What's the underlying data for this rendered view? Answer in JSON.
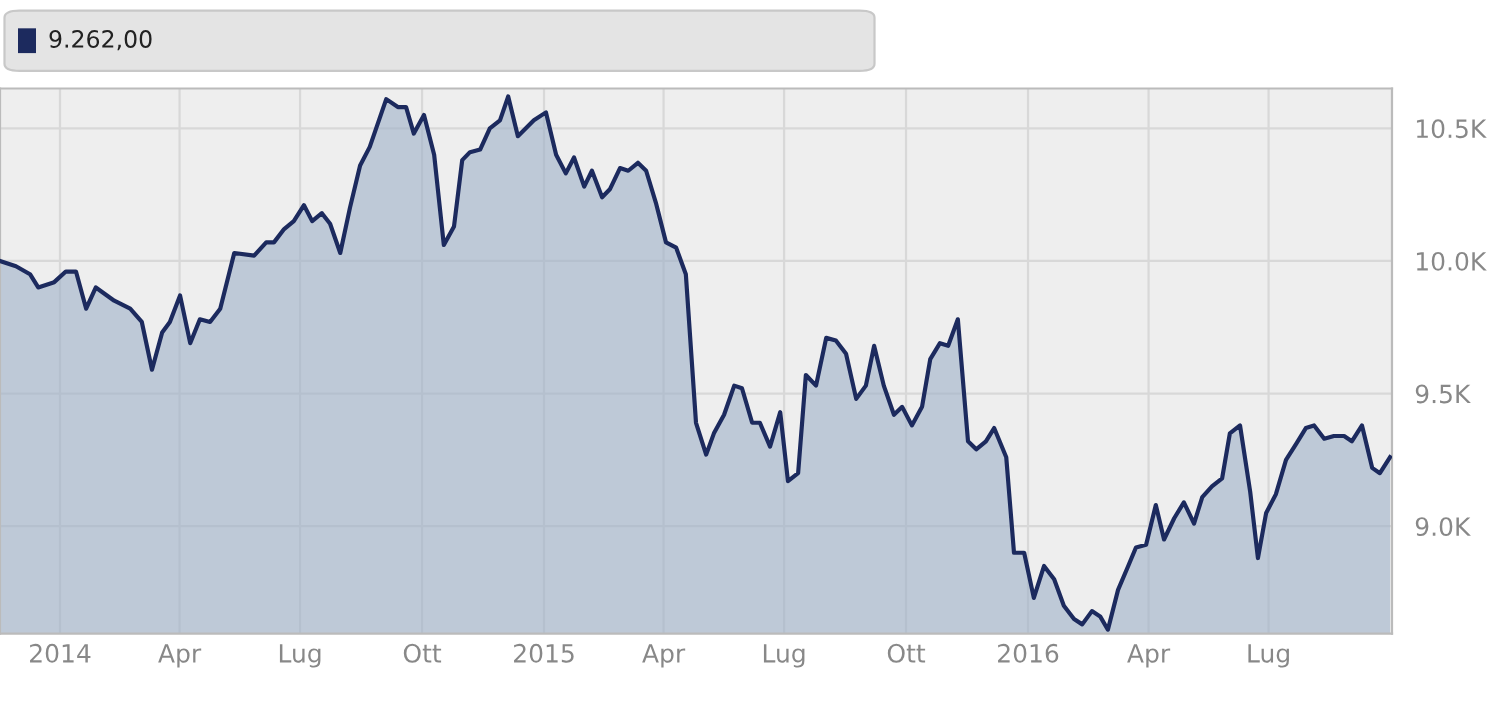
{
  "chart_data": {
    "type": "area",
    "annotations": [
      "9.262,00"
    ],
    "x": [
      2013.876,
      2013.909,
      2013.938,
      2013.955,
      2013.988,
      2014.012,
      2014.033,
      2014.054,
      2014.074,
      2014.112,
      2014.145,
      2014.169,
      2014.19,
      2014.211,
      2014.227,
      2014.248,
      2014.269,
      2014.289,
      2014.31,
      2014.331,
      2014.36,
      2014.401,
      2014.426,
      2014.442,
      2014.463,
      2014.483,
      2014.504,
      2014.521,
      2014.541,
      2014.558,
      2014.579,
      2014.599,
      2014.62,
      2014.64,
      2014.674,
      2014.698,
      2014.715,
      2014.731,
      2014.752,
      2014.773,
      2014.793,
      2014.814,
      2014.831,
      2014.847,
      2014.868,
      2014.888,
      2014.909,
      2014.926,
      2014.946,
      2014.979,
      2015.004,
      2015.025,
      2015.045,
      2015.062,
      2015.083,
      2015.099,
      2015.12,
      2015.136,
      2015.157,
      2015.174,
      2015.194,
      2015.211,
      2015.231,
      2015.252,
      2015.273,
      2015.293,
      2015.314,
      2015.335,
      2015.351,
      2015.372,
      2015.393,
      2015.409,
      2015.43,
      2015.446,
      2015.467,
      2015.488,
      2015.504,
      2015.525,
      2015.541,
      2015.562,
      2015.583,
      2015.603,
      2015.624,
      2015.645,
      2015.665,
      2015.682,
      2015.702,
      2015.723,
      2015.74,
      2015.76,
      2015.781,
      2015.798,
      2015.818,
      2015.835,
      2015.855,
      2015.876,
      2015.893,
      2015.913,
      2015.93,
      2015.955,
      2015.971,
      2015.992,
      2016.012,
      2016.033,
      2016.054,
      2016.074,
      2016.095,
      2016.112,
      2016.132,
      2016.149,
      2016.165,
      2016.186,
      2016.207,
      2016.223,
      2016.244,
      2016.264,
      2016.281,
      2016.302,
      2016.322,
      2016.343,
      2016.36,
      2016.38,
      2016.401,
      2016.417,
      2016.438,
      2016.459,
      2016.475,
      2016.492,
      2016.512,
      2016.533,
      2016.554,
      2016.574,
      2016.591,
      2016.612,
      2016.632,
      2016.653,
      2016.669,
      2016.69,
      2016.711,
      2016.727,
      2016.748
    ],
    "series": [
      {
        "color": "#1c2a5e",
        "values": [
          10000,
          9980,
          9950,
          9900,
          9920,
          9960,
          9960,
          9820,
          9900,
          9850,
          9820,
          9770,
          9590,
          9730,
          9770,
          9870,
          9690,
          9780,
          9770,
          9820,
          10030,
          10020,
          10070,
          10070,
          10120,
          10150,
          10210,
          10150,
          10180,
          10140,
          10030,
          10200,
          10360,
          10430,
          10610,
          10580,
          10580,
          10480,
          10550,
          10400,
          10060,
          10130,
          10380,
          10410,
          10420,
          10500,
          10530,
          10620,
          10470,
          10530,
          10560,
          10400,
          10330,
          10390,
          10280,
          10340,
          10240,
          10270,
          10350,
          10340,
          10370,
          10340,
          10220,
          10070,
          10050,
          9950,
          9390,
          9270,
          9350,
          9420,
          9530,
          9520,
          9390,
          9390,
          9300,
          9430,
          9170,
          9200,
          9570,
          9530,
          9710,
          9700,
          9650,
          9480,
          9530,
          9680,
          9530,
          9420,
          9450,
          9380,
          9450,
          9630,
          9690,
          9680,
          9780,
          9320,
          9290,
          9320,
          9370,
          9260,
          8900,
          8900,
          8730,
          8850,
          8800,
          8700,
          8650,
          8630,
          8680,
          8660,
          8610,
          8760,
          8850,
          8920,
          8930,
          9080,
          8950,
          9030,
          9090,
          9010,
          9110,
          9150,
          9180,
          9350,
          9380,
          9130,
          8880,
          9050,
          9120,
          9250,
          9310,
          9370,
          9380,
          9330,
          9340,
          9340,
          9320,
          9380,
          9220,
          9200,
          9260
        ]
      }
    ],
    "xlim": [
      2013.876,
      2016.752
    ],
    "xticks": [
      {
        "value": 2014.0,
        "label": "2014"
      },
      {
        "value": 2014.247,
        "label": "Apr"
      },
      {
        "value": 2014.496,
        "label": "Lug"
      },
      {
        "value": 2014.748,
        "label": "Ott"
      },
      {
        "value": 2015.0,
        "label": "2015"
      },
      {
        "value": 2015.247,
        "label": "Apr"
      },
      {
        "value": 2015.496,
        "label": "Lug"
      },
      {
        "value": 2015.748,
        "label": "Ott"
      },
      {
        "value": 2016.0,
        "label": "2016"
      },
      {
        "value": 2016.249,
        "label": "Apr"
      },
      {
        "value": 2016.497,
        "label": "Lug"
      }
    ],
    "ylim": [
      8595,
      10650
    ],
    "yticks": [
      {
        "value": 9000,
        "label": "9.0K"
      },
      {
        "value": 9500,
        "label": "9.5K"
      },
      {
        "value": 10000,
        "label": "10.0K"
      },
      {
        "value": 10500,
        "label": "10.5K"
      }
    ],
    "grid": true
  }
}
